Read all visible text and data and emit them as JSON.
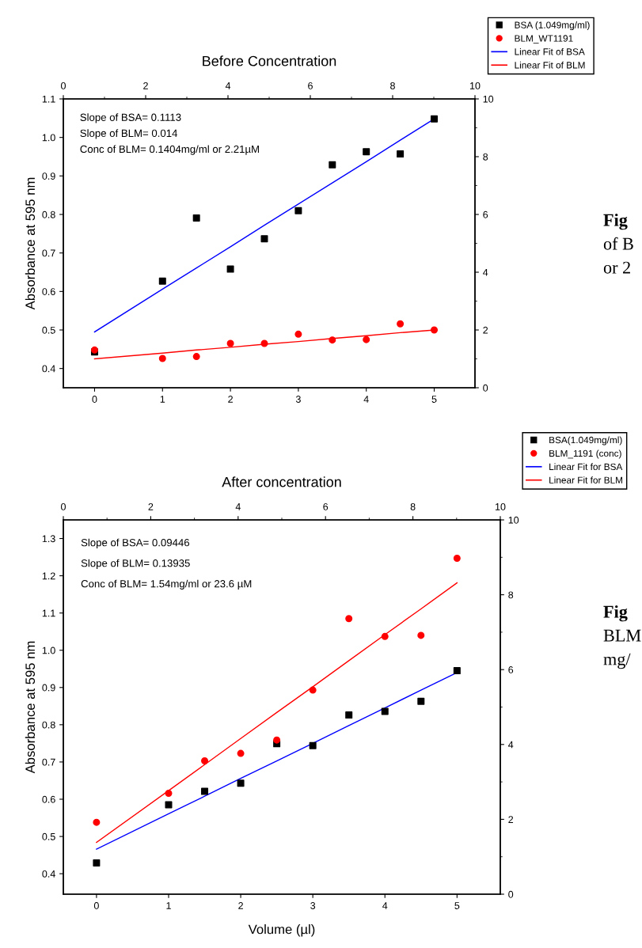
{
  "chart_data": [
    {
      "type": "scatter",
      "title": "Before Concentration",
      "ylabel": "Absorbance at 595 nm",
      "x": [
        0,
        1,
        1.5,
        2,
        2.5,
        3,
        3.5,
        4,
        4.5,
        5
      ],
      "series": [
        {
          "name": "BSA (1.049mg/ml)",
          "color": "#000000",
          "marker": "square",
          "values": [
            0.443,
            0.627,
            0.791,
            0.658,
            0.737,
            0.81,
            0.929,
            0.963,
            0.957,
            1.048
          ]
        },
        {
          "name": "BLM_WT1191",
          "color": "#ff0000",
          "marker": "circle",
          "values": [
            0.448,
            0.426,
            0.431,
            0.465,
            0.465,
            0.489,
            0.474,
            0.475,
            0.516,
            0.5
          ]
        },
        {
          "name": "Linear Fit of BSA",
          "type": "line",
          "color": "#0000ff",
          "values": [
            0.495,
            0.606,
            0.661,
            0.716,
            0.772,
            0.827,
            0.882,
            0.937,
            0.993,
            1.048
          ]
        },
        {
          "name": "Linear Fit of BLM",
          "type": "line",
          "color": "#ff0000",
          "values": [
            0.425,
            0.44,
            0.448,
            0.455,
            0.463,
            0.47,
            0.478,
            0.485,
            0.493,
            0.5
          ]
        }
      ],
      "xlim": [
        -0.46,
        5.6
      ],
      "xticks": [
        0,
        1,
        2,
        3,
        4,
        5
      ],
      "ylim": [
        0.35,
        1.1
      ],
      "yticks": [
        {
          "value": 0.4,
          "label": "0.4"
        },
        {
          "value": 0.5,
          "label": "0.5"
        },
        {
          "value": 0.6,
          "label": "0.6"
        },
        {
          "value": 0.7,
          "label": "0.7"
        },
        {
          "value": 0.8,
          "label": "0.8"
        },
        {
          "value": 0.9,
          "label": "0.9"
        },
        {
          "value": 1.0,
          "label": "1.0"
        },
        {
          "value": 1.1,
          "label": "1.1"
        }
      ],
      "x2lim": [
        0,
        10
      ],
      "x2ticks": [
        0,
        2,
        4,
        6,
        8,
        10
      ],
      "y2lim": [
        0,
        10
      ],
      "y2ticks": [
        0,
        2,
        4,
        6,
        8,
        10
      ],
      "annotations": [
        "Slope of BSA= 0.1113",
        "Slope of BLM= 0.014",
        "Conc of BLM= 0.1404mg/ml or 2.21µM"
      ],
      "grid": false,
      "legend": "top right"
    },
    {
      "type": "other",
      "annotations": [
        "Fig",
        "of B",
        "or 2"
      ]
    },
    {
      "type": "scatter",
      "title": "After concentration",
      "ylabel": "Absorbance at 595 nm",
      "xlabel": "Volume (µl)",
      "x": [
        0,
        1,
        1.5,
        2,
        2.5,
        3,
        3.5,
        4,
        4.5,
        5
      ],
      "series": [
        {
          "name": "BSA(1.049mg/ml)",
          "color": "#000000",
          "marker": "square",
          "values": [
            0.429,
            0.585,
            0.621,
            0.643,
            0.749,
            0.744,
            0.826,
            0.836,
            0.863,
            0.945
          ]
        },
        {
          "name": "BLM_1191 (conc)",
          "color": "#ff0000",
          "marker": "circle",
          "values": [
            0.538,
            0.616,
            0.703,
            0.723,
            0.759,
            0.893,
            1.085,
            1.037,
            1.04,
            1.247
          ]
        },
        {
          "name": "Linear Fit for BSA",
          "type": "line",
          "color": "#0000ff",
          "values": [
            0.466,
            0.561,
            0.608,
            0.656,
            0.703,
            0.75,
            0.798,
            0.845,
            0.893,
            0.94
          ]
        },
        {
          "name": "Linear Fit for BLM",
          "type": "line",
          "color": "#ff0000",
          "values": [
            0.484,
            0.623,
            0.693,
            0.763,
            0.833,
            0.902,
            0.972,
            1.042,
            1.111,
            1.181
          ]
        }
      ],
      "xlim": [
        -0.46,
        5.6
      ],
      "xticks": [
        0,
        1,
        2,
        3,
        4,
        5
      ],
      "ylim": [
        0.345,
        1.35
      ],
      "yticks": [
        {
          "value": 0.4,
          "label": "0.4"
        },
        {
          "value": 0.5,
          "label": "0.5"
        },
        {
          "value": 0.6,
          "label": "0.6"
        },
        {
          "value": 0.7,
          "label": "0.7"
        },
        {
          "value": 0.8,
          "label": "0.8"
        },
        {
          "value": 0.9,
          "label": "0.9"
        },
        {
          "value": 1.0,
          "label": "1.0"
        },
        {
          "value": 1.1,
          "label": "1.1"
        },
        {
          "value": 1.2,
          "label": "1.2"
        },
        {
          "value": 1.3,
          "label": "1.3"
        }
      ],
      "x2lim": [
        0,
        10
      ],
      "x2ticks": [
        0,
        2,
        4,
        6,
        8,
        10
      ],
      "y2lim": [
        0,
        10
      ],
      "y2ticks": [
        0,
        2,
        4,
        6,
        8,
        10
      ],
      "annotations": [
        "Slope of BSA= 0.09446",
        "Slope of BLM= 0.13935",
        "Conc of BLM= 1.54mg/ml or 23.6 µM"
      ],
      "grid": false,
      "legend": "top right"
    },
    {
      "type": "other",
      "annotations": [
        "Fig",
        "BLM",
        "mg/"
      ]
    }
  ]
}
